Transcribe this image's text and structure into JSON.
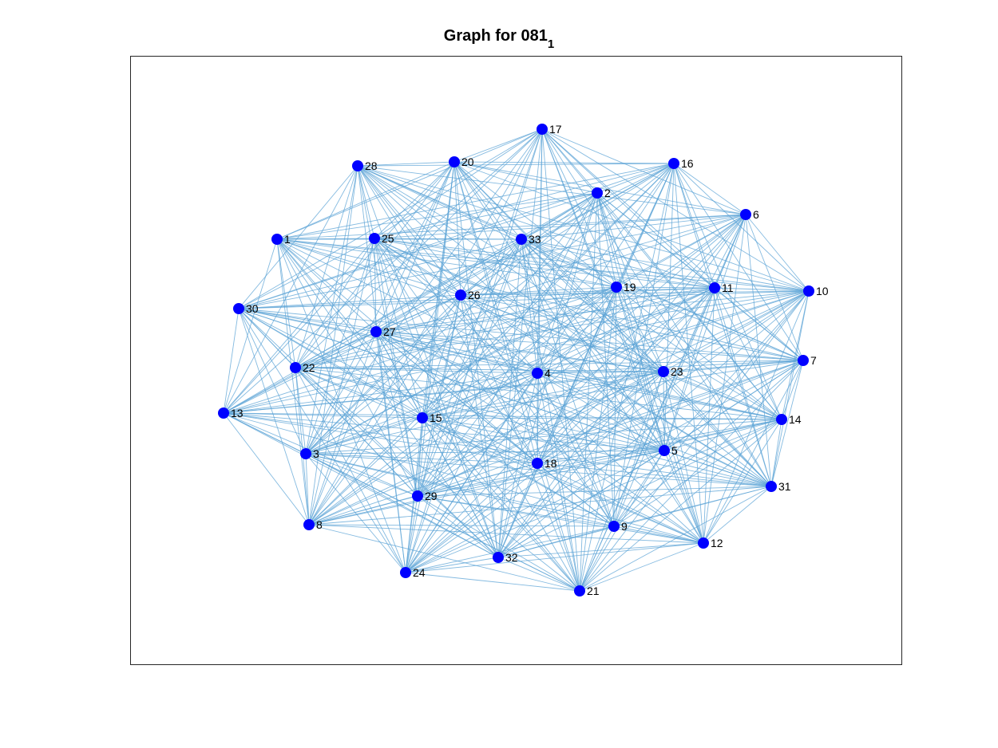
{
  "figure": {
    "title_main": "Graph for 081",
    "title_subscript": "1",
    "edge_color": "#5ba3d6",
    "node_color": "#0000ff"
  },
  "graph": {
    "nodes": [
      {
        "id": 1,
        "label": "1"
      },
      {
        "id": 2,
        "label": "2"
      },
      {
        "id": 3,
        "label": "3"
      },
      {
        "id": 4,
        "label": "4"
      },
      {
        "id": 5,
        "label": "5"
      },
      {
        "id": 6,
        "label": "6"
      },
      {
        "id": 7,
        "label": "7"
      },
      {
        "id": 8,
        "label": "8"
      },
      {
        "id": 9,
        "label": "9"
      },
      {
        "id": 10,
        "label": "10"
      },
      {
        "id": 11,
        "label": "11"
      },
      {
        "id": 12,
        "label": "12"
      },
      {
        "id": 13,
        "label": "13"
      },
      {
        "id": 14,
        "label": "14"
      },
      {
        "id": 15,
        "label": "15"
      },
      {
        "id": 16,
        "label": "16"
      },
      {
        "id": 17,
        "label": "17"
      },
      {
        "id": 18,
        "label": "18"
      },
      {
        "id": 19,
        "label": "19"
      },
      {
        "id": 20,
        "label": "20"
      },
      {
        "id": 21,
        "label": "21"
      },
      {
        "id": 22,
        "label": "22"
      },
      {
        "id": 23,
        "label": "23"
      },
      {
        "id": 24,
        "label": "24"
      },
      {
        "id": 25,
        "label": "25"
      },
      {
        "id": 26,
        "label": "26"
      },
      {
        "id": 27,
        "label": "27"
      },
      {
        "id": 28,
        "label": "28"
      },
      {
        "id": 29,
        "label": "29"
      },
      {
        "id": 30,
        "label": "30"
      },
      {
        "id": 31,
        "label": "31"
      },
      {
        "id": 32,
        "label": "32"
      },
      {
        "id": 33,
        "label": "33"
      }
    ]
  }
}
